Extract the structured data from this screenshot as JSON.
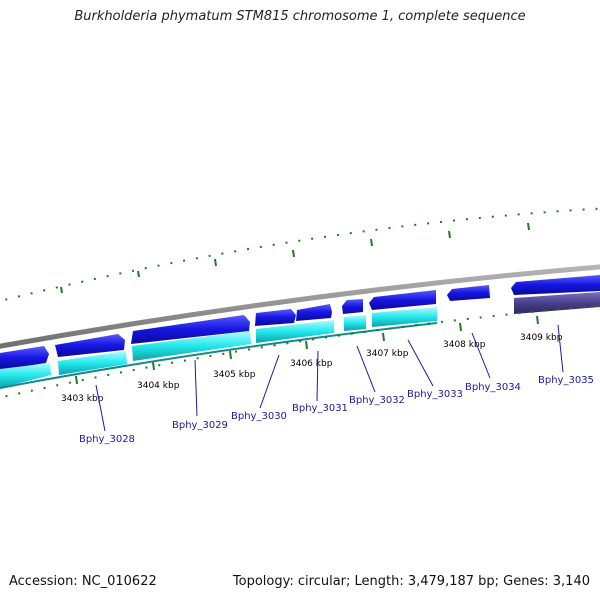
{
  "title": "Burkholderia phymatum STM815 chromosome 1, complete sequence",
  "footer": {
    "accession": "Accession: NC_010622",
    "summary": "Topology: circular; Length: 3,479,187 bp; Genes: 3,140"
  },
  "colors": {
    "backbone": "#8a8a8a",
    "forward_gene": "#1515e0",
    "reverse_gene": "#22e8ec",
    "highlight_gene": "#4a3f8a",
    "tick": "#1f7a1f",
    "label": "#1a1aa6"
  },
  "kbp_labels": [
    "3403 kbp",
    "3404 kbp",
    "3405 kbp",
    "3406 kbp",
    "3407 kbp",
    "3408 kbp",
    "3409 kbp"
  ],
  "gene_labels": [
    "Bphy_3028",
    "Bphy_3029",
    "Bphy_3030",
    "Bphy_3031",
    "Bphy_3032",
    "Bphy_3033",
    "Bphy_3034",
    "Bphy_3035"
  ]
}
